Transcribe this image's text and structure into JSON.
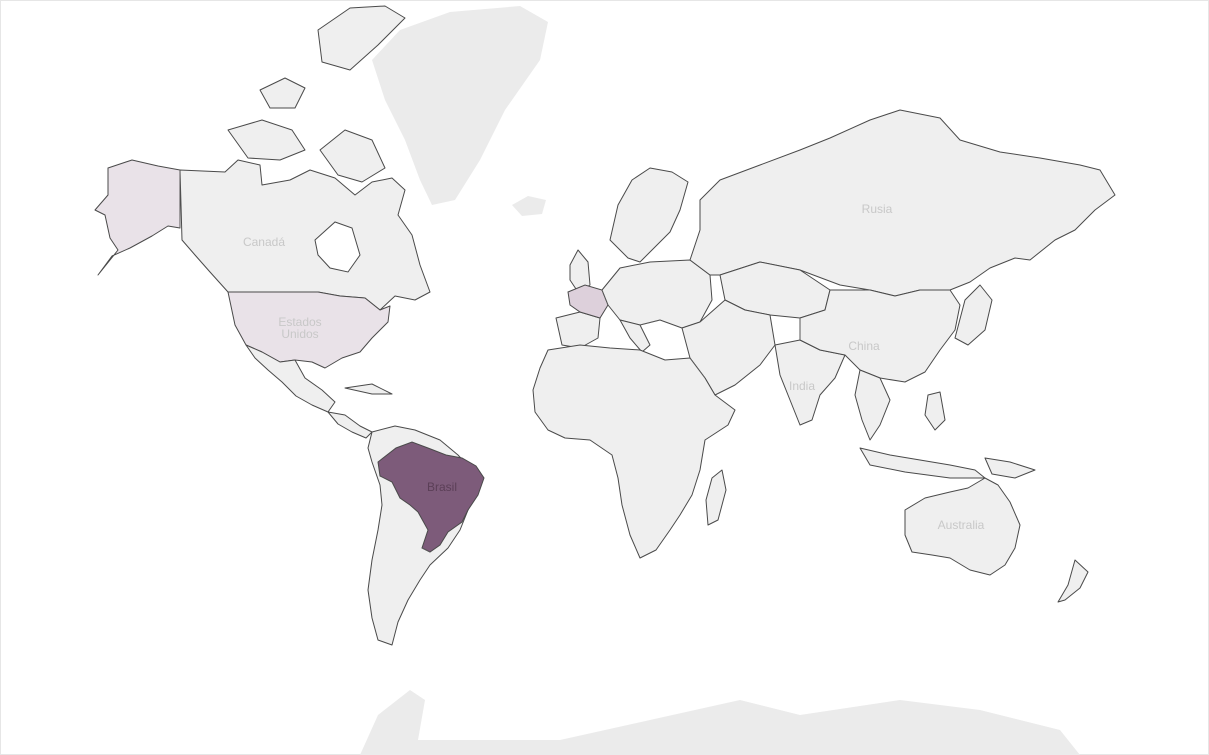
{
  "map": {
    "colors": {
      "background": "#ffffff",
      "land": "#efefef",
      "outline": "#4a4a4a",
      "highlight_high": "#7d5b7a",
      "highlight_low": "#e9e2e8",
      "highlight_mid": "#ddd0db",
      "label": "#c8c8c8",
      "label_on_dark": "#5b3f57"
    },
    "labels": {
      "canada": "Canadá",
      "usa_line1": "Estados",
      "usa_line2": "Unidos",
      "brazil": "Brasil",
      "russia": "Rusia",
      "china": "China",
      "india": "India",
      "australia": "Australia"
    },
    "highlighted_countries": [
      {
        "name": "Brasil",
        "level": "high"
      },
      {
        "name": "Francia",
        "level": "mid"
      },
      {
        "name": "Estados Unidos",
        "level": "low"
      }
    ]
  }
}
